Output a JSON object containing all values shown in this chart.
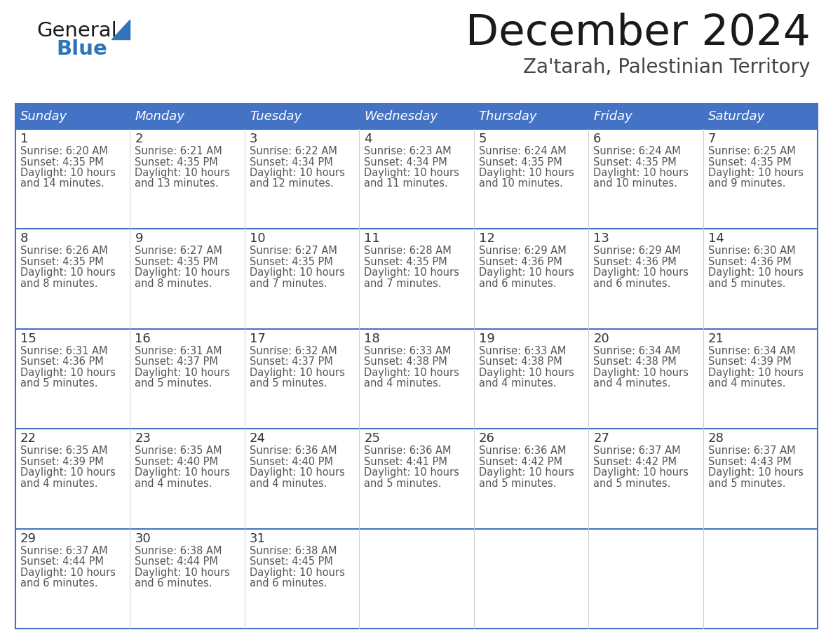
{
  "title": "December 2024",
  "subtitle": "Za'tarah, Palestinian Territory",
  "header_bg": "#4472C4",
  "header_text_color": "#FFFFFF",
  "header_font_size": 13,
  "days_of_week": [
    "Sunday",
    "Monday",
    "Tuesday",
    "Wednesday",
    "Thursday",
    "Friday",
    "Saturday"
  ],
  "grid_line_color": "#4472C4",
  "day_number_color": "#333333",
  "day_content_color": "#555555",
  "title_color": "#1a1a1a",
  "subtitle_color": "#444444",
  "logo_color1": "#1a1a1a",
  "logo_color2": "#2E75B6",
  "logo_triangle_color": "#2E75B6",
  "calendar": [
    [
      {
        "day": 1,
        "sunrise": "6:20 AM",
        "sunset": "4:35 PM",
        "daylight": "10 hours and 14 minutes."
      },
      {
        "day": 2,
        "sunrise": "6:21 AM",
        "sunset": "4:35 PM",
        "daylight": "10 hours and 13 minutes."
      },
      {
        "day": 3,
        "sunrise": "6:22 AM",
        "sunset": "4:34 PM",
        "daylight": "10 hours and 12 minutes."
      },
      {
        "day": 4,
        "sunrise": "6:23 AM",
        "sunset": "4:34 PM",
        "daylight": "10 hours and 11 minutes."
      },
      {
        "day": 5,
        "sunrise": "6:24 AM",
        "sunset": "4:35 PM",
        "daylight": "10 hours and 10 minutes."
      },
      {
        "day": 6,
        "sunrise": "6:24 AM",
        "sunset": "4:35 PM",
        "daylight": "10 hours and 10 minutes."
      },
      {
        "day": 7,
        "sunrise": "6:25 AM",
        "sunset": "4:35 PM",
        "daylight": "10 hours and 9 minutes."
      }
    ],
    [
      {
        "day": 8,
        "sunrise": "6:26 AM",
        "sunset": "4:35 PM",
        "daylight": "10 hours and 8 minutes."
      },
      {
        "day": 9,
        "sunrise": "6:27 AM",
        "sunset": "4:35 PM",
        "daylight": "10 hours and 8 minutes."
      },
      {
        "day": 10,
        "sunrise": "6:27 AM",
        "sunset": "4:35 PM",
        "daylight": "10 hours and 7 minutes."
      },
      {
        "day": 11,
        "sunrise": "6:28 AM",
        "sunset": "4:35 PM",
        "daylight": "10 hours and 7 minutes."
      },
      {
        "day": 12,
        "sunrise": "6:29 AM",
        "sunset": "4:36 PM",
        "daylight": "10 hours and 6 minutes."
      },
      {
        "day": 13,
        "sunrise": "6:29 AM",
        "sunset": "4:36 PM",
        "daylight": "10 hours and 6 minutes."
      },
      {
        "day": 14,
        "sunrise": "6:30 AM",
        "sunset": "4:36 PM",
        "daylight": "10 hours and 5 minutes."
      }
    ],
    [
      {
        "day": 15,
        "sunrise": "6:31 AM",
        "sunset": "4:36 PM",
        "daylight": "10 hours and 5 minutes."
      },
      {
        "day": 16,
        "sunrise": "6:31 AM",
        "sunset": "4:37 PM",
        "daylight": "10 hours and 5 minutes."
      },
      {
        "day": 17,
        "sunrise": "6:32 AM",
        "sunset": "4:37 PM",
        "daylight": "10 hours and 5 minutes."
      },
      {
        "day": 18,
        "sunrise": "6:33 AM",
        "sunset": "4:38 PM",
        "daylight": "10 hours and 4 minutes."
      },
      {
        "day": 19,
        "sunrise": "6:33 AM",
        "sunset": "4:38 PM",
        "daylight": "10 hours and 4 minutes."
      },
      {
        "day": 20,
        "sunrise": "6:34 AM",
        "sunset": "4:38 PM",
        "daylight": "10 hours and 4 minutes."
      },
      {
        "day": 21,
        "sunrise": "6:34 AM",
        "sunset": "4:39 PM",
        "daylight": "10 hours and 4 minutes."
      }
    ],
    [
      {
        "day": 22,
        "sunrise": "6:35 AM",
        "sunset": "4:39 PM",
        "daylight": "10 hours and 4 minutes."
      },
      {
        "day": 23,
        "sunrise": "6:35 AM",
        "sunset": "4:40 PM",
        "daylight": "10 hours and 4 minutes."
      },
      {
        "day": 24,
        "sunrise": "6:36 AM",
        "sunset": "4:40 PM",
        "daylight": "10 hours and 4 minutes."
      },
      {
        "day": 25,
        "sunrise": "6:36 AM",
        "sunset": "4:41 PM",
        "daylight": "10 hours and 5 minutes."
      },
      {
        "day": 26,
        "sunrise": "6:36 AM",
        "sunset": "4:42 PM",
        "daylight": "10 hours and 5 minutes."
      },
      {
        "day": 27,
        "sunrise": "6:37 AM",
        "sunset": "4:42 PM",
        "daylight": "10 hours and 5 minutes."
      },
      {
        "day": 28,
        "sunrise": "6:37 AM",
        "sunset": "4:43 PM",
        "daylight": "10 hours and 5 minutes."
      }
    ],
    [
      {
        "day": 29,
        "sunrise": "6:37 AM",
        "sunset": "4:44 PM",
        "daylight": "10 hours and 6 minutes."
      },
      {
        "day": 30,
        "sunrise": "6:38 AM",
        "sunset": "4:44 PM",
        "daylight": "10 hours and 6 minutes."
      },
      {
        "day": 31,
        "sunrise": "6:38 AM",
        "sunset": "4:45 PM",
        "daylight": "10 hours and 6 minutes."
      },
      null,
      null,
      null,
      null
    ]
  ]
}
